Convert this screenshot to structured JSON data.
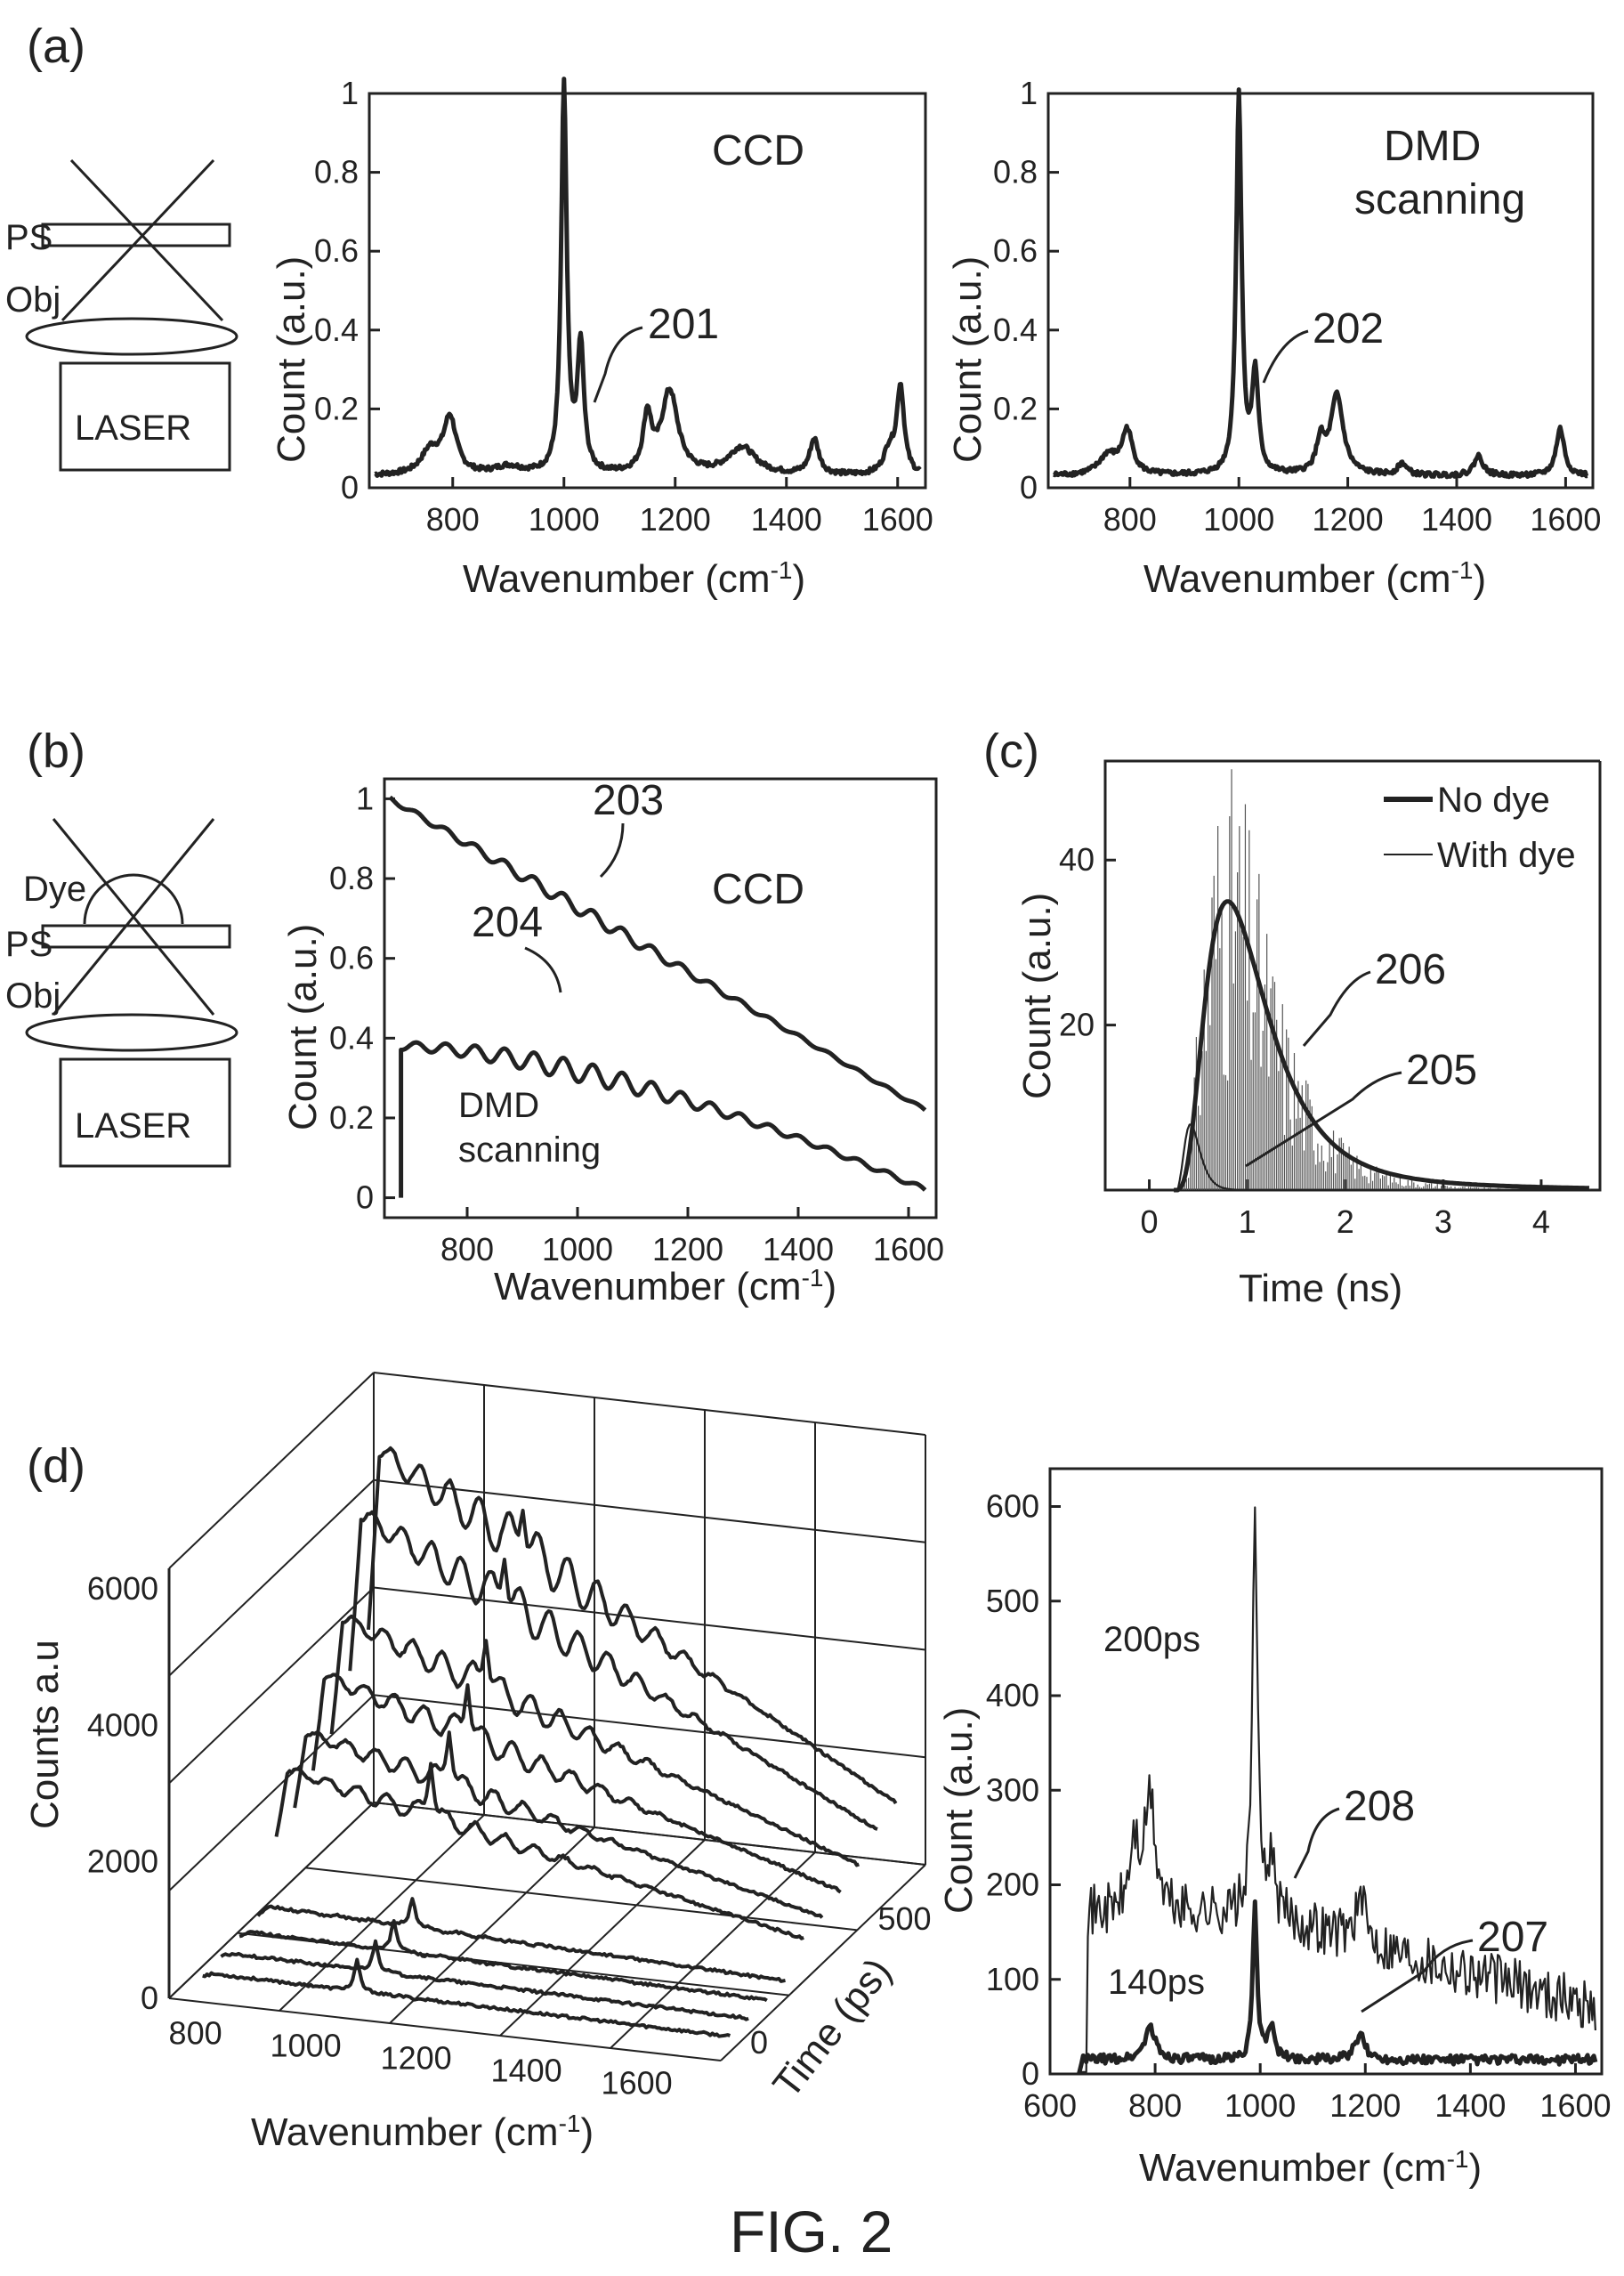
{
  "figure_caption": "FIG. 2",
  "chart_data": [
    {
      "id": "a1",
      "panel_label": "(a)",
      "type": "line",
      "inset_text": "CCD",
      "annotation": "201",
      "xlabel": "Wavenumber (cm",
      "xlabel_sup": "-1",
      "xlabel_end": ")",
      "ylabel": "Count (a.u.)",
      "xlim": [
        650,
        1650
      ],
      "ylim": [
        0,
        1
      ],
      "xticks": [
        800,
        1000,
        1200,
        1400,
        1600
      ],
      "yticks": [
        0,
        0.2,
        0.4,
        0.6,
        0.8,
        1
      ],
      "ytick_labels": [
        "0",
        "0.2",
        "0.4",
        "0.6",
        "0.8",
        "1"
      ],
      "series": [
        {
          "baseline": 0.03,
          "peaks": [
            [
              760,
              0.06,
              20
            ],
            [
              795,
              0.14,
              14
            ],
            [
              900,
              0.02,
              30
            ],
            [
              1000,
              0.98,
              6
            ],
            [
              1030,
              0.32,
              7
            ],
            [
              1150,
              0.14,
              9
            ],
            [
              1190,
              0.21,
              18
            ],
            [
              1320,
              0.07,
              30
            ],
            [
              1450,
              0.09,
              10
            ],
            [
              1585,
              0.06,
              12
            ],
            [
              1605,
              0.22,
              8
            ]
          ]
        }
      ]
    },
    {
      "id": "a2",
      "type": "line",
      "inset_text": [
        "DMD",
        "scanning"
      ],
      "annotation": "202",
      "xlabel": "Wavenumber (cm",
      "xlabel_sup": "-1",
      "xlabel_end": ")",
      "ylabel": "Count (a.u.)",
      "xlim": [
        650,
        1650
      ],
      "ylim": [
        0,
        1
      ],
      "xticks": [
        800,
        1000,
        1200,
        1400,
        1600
      ],
      "yticks": [
        0,
        0.2,
        0.4,
        0.6,
        0.8,
        1
      ],
      "ytick_labels": [
        "0",
        "0.2",
        "0.4",
        "0.6",
        "0.8",
        "1"
      ],
      "series": [
        {
          "baseline": 0.03,
          "peaks": [
            [
              760,
              0.05,
              20
            ],
            [
              795,
              0.11,
              12
            ],
            [
              1000,
              0.96,
              6
            ],
            [
              1030,
              0.25,
              7
            ],
            [
              1150,
              0.08,
              9
            ],
            [
              1180,
              0.2,
              14
            ],
            [
              1300,
              0.03,
              10
            ],
            [
              1440,
              0.05,
              10
            ],
            [
              1590,
              0.12,
              9
            ]
          ]
        }
      ]
    },
    {
      "id": "b",
      "panel_label": "(b)",
      "type": "line",
      "inset_text": "CCD",
      "annotations": [
        "203",
        "204"
      ],
      "series_label": [
        "DMD",
        "scanning"
      ],
      "xlabel": "Wavenumber (cm",
      "xlabel_sup": "-1",
      "xlabel_end": ")",
      "ylabel": "Count (a.u.)",
      "xlim": [
        650,
        1650
      ],
      "ylim": [
        -0.05,
        1.05
      ],
      "xticks": [
        800,
        1000,
        1200,
        1400,
        1600
      ],
      "yticks": [
        0,
        0.2,
        0.4,
        0.6,
        0.8,
        1
      ],
      "ytick_labels": [
        "0",
        "0.2",
        "0.4",
        "0.6",
        "0.8",
        "1"
      ],
      "series": [
        {
          "start": [
            660,
            1.0
          ],
          "end": [
            1630,
            0.22
          ],
          "ripple": 0.012
        },
        {
          "start": [
            680,
            0.38
          ],
          "end": [
            1630,
            0.02
          ],
          "ripple": 0.02
        }
      ]
    },
    {
      "id": "c",
      "panel_label": "(c)",
      "type": "line",
      "annotations": [
        "206",
        "205"
      ],
      "xlabel": "Time (ns)",
      "ylabel": "Count (a.u.)",
      "xlim": [
        -0.45,
        4.6
      ],
      "ylim": [
        0,
        52
      ],
      "xticks": [
        0,
        1,
        2,
        3,
        4
      ],
      "yticks": [
        20,
        40
      ],
      "legend": {
        "position": "top-right",
        "entries": [
          "No dye",
          "With dye"
        ]
      },
      "series": [
        {
          "name": "No dye",
          "peak_time": 0.42,
          "peak_count": 8
        },
        {
          "name": "With dye",
          "peak_time": 0.8,
          "peak_count": 35
        }
      ]
    },
    {
      "id": "d1",
      "panel_label": "(d)",
      "type": "line",
      "xlabel": "Wavenumber (cm",
      "xlabel_sup": "-1",
      "xlabel_end": ")",
      "ylabel": "Counts a.u",
      "zlabel": "Time (ps)",
      "xticks": [
        800,
        1000,
        1200,
        1400,
        1600
      ],
      "yticks": [
        0,
        2000,
        4000,
        6000
      ],
      "zticks": [
        0,
        500
      ],
      "zlim": [
        0,
        6000
      ]
    },
    {
      "id": "d2",
      "type": "line",
      "annotations": [
        "208",
        "207"
      ],
      "series_labels": [
        "200ps",
        "140ps"
      ],
      "xlabel": "Wavenumber (cm",
      "xlabel_sup": "-1",
      "xlabel_end": ")",
      "ylabel": "Count (a.u.)",
      "xlim": [
        600,
        1650
      ],
      "ylim": [
        0,
        640
      ],
      "xticks": [
        600,
        800,
        1000,
        1200,
        1400,
        1600
      ],
      "yticks": [
        0,
        100,
        200,
        300,
        400,
        500,
        600
      ],
      "series": [
        {
          "name": "200ps",
          "baseline": 170,
          "peaks": [
            [
              790,
              120,
              12
            ],
            [
              760,
              70,
              10
            ],
            [
              990,
              450,
              5
            ],
            [
              1020,
              60,
              8
            ],
            [
              1190,
              40,
              14
            ]
          ]
        },
        {
          "name": "140ps",
          "baseline": 15,
          "peaks": [
            [
              790,
              35,
              12
            ],
            [
              990,
              160,
              5
            ],
            [
              1020,
              35,
              8
            ],
            [
              1190,
              25,
              12
            ]
          ]
        }
      ]
    }
  ],
  "schematics": {
    "a": {
      "labels": [
        "PS",
        "Obj",
        "LASER"
      ]
    },
    "b": {
      "labels": [
        "Dye",
        "PS",
        "Obj",
        "LASER"
      ]
    }
  }
}
